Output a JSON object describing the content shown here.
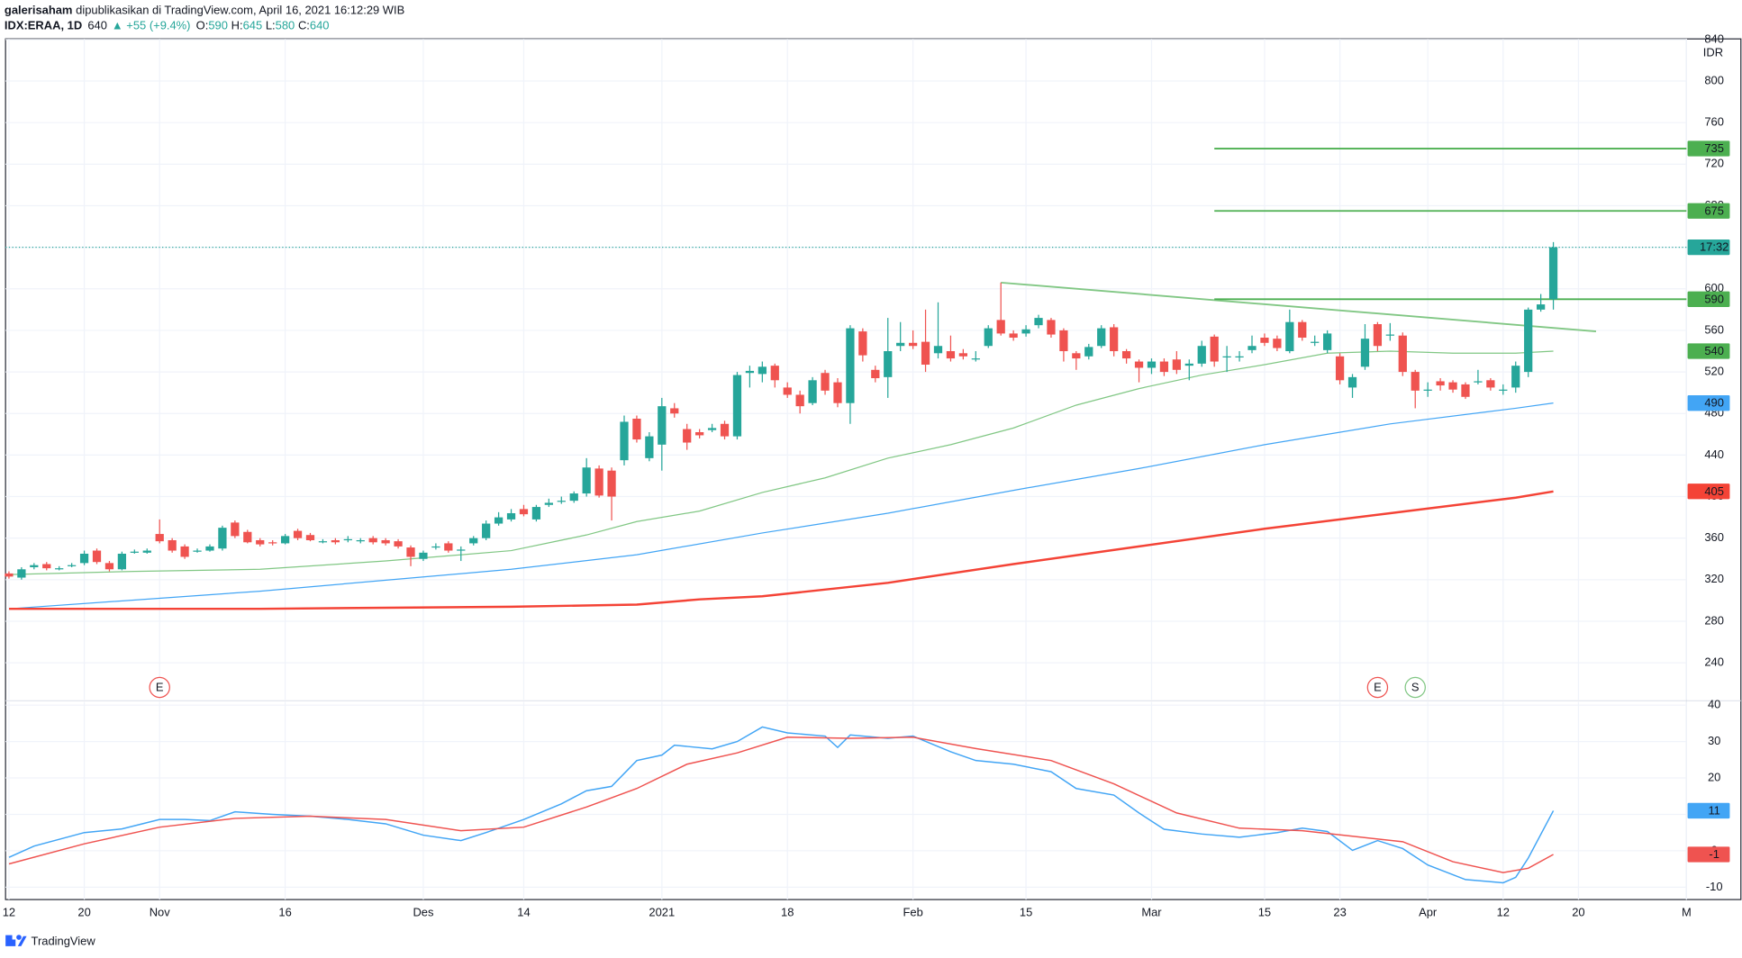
{
  "header": {
    "author": "galerisaham",
    "published": "dipublikasikan di TradingView.com, April 16, 2021 16:12:29 WIB",
    "symbol": "IDX:ERAA, 1D",
    "last": "640",
    "change": "▲ +55 (+9.4%)",
    "ohlc": [
      {
        "k": "O:",
        "v": "590"
      },
      {
        "k": "H:",
        "v": "645"
      },
      {
        "k": "L:",
        "v": "580"
      },
      {
        "k": "C:",
        "v": "640"
      }
    ],
    "currency": "IDR",
    "countdown": "17:32",
    "brand": "TradingView"
  },
  "chart_data": [
    {
      "type": "candlestick",
      "up_color": "#26a69a",
      "down_color": "#ef5350",
      "open": [
        326,
        322,
        332,
        335,
        330,
        333,
        336,
        348,
        336,
        330,
        346,
        346,
        364,
        358,
        352,
        347,
        348,
        350,
        375,
        366,
        358,
        356,
        355,
        367,
        363,
        356,
        358,
        358,
        357,
        360,
        358,
        357,
        351,
        340,
        351,
        355,
        348,
        355,
        360,
        374,
        378,
        388,
        378,
        392,
        395,
        396,
        403,
        427,
        425,
        435,
        475,
        437,
        450,
        485,
        465,
        462,
        464,
        470,
        458,
        519,
        518,
        526,
        505,
        498,
        490,
        519,
        510,
        490,
        559,
        522,
        515,
        545,
        548,
        549,
        538,
        540,
        538,
        532,
        545,
        570,
        557,
        557,
        565,
        570,
        560,
        538,
        535,
        545,
        563,
        540,
        530,
        524,
        530,
        532,
        526,
        528,
        554,
        534,
        534,
        541,
        553,
        552,
        540,
        568,
        548,
        541,
        535,
        505,
        525,
        566,
        555,
        555,
        520,
        502,
        511,
        510,
        508,
        510,
        512,
        502,
        505,
        520,
        580,
        590
      ],
      "high": [
        328,
        332,
        336,
        337,
        333,
        336,
        348,
        350,
        338,
        347,
        349,
        350,
        378,
        360,
        354,
        350,
        354,
        372,
        377,
        368,
        360,
        358,
        364,
        369,
        365,
        359,
        360,
        362,
        360,
        362,
        360,
        359,
        353,
        348,
        355,
        357,
        352,
        362,
        377,
        385,
        388,
        392,
        392,
        398,
        400,
        405,
        437,
        430,
        428,
        478,
        478,
        462,
        495,
        490,
        470,
        465,
        470,
        473,
        520,
        526,
        530,
        528,
        510,
        502,
        515,
        522,
        514,
        565,
        562,
        526,
        572,
        568,
        560,
        580,
        587,
        555,
        542,
        540,
        565,
        606,
        560,
        565,
        575,
        572,
        562,
        540,
        547,
        565,
        566,
        542,
        532,
        533,
        533,
        540,
        532,
        550,
        556,
        545,
        540,
        555,
        557,
        555,
        580,
        570,
        555,
        560,
        538,
        518,
        566,
        568,
        567,
        558,
        522,
        510,
        514,
        512,
        510,
        522,
        514,
        508,
        530,
        582,
        595,
        645
      ],
      "low": [
        321,
        320,
        330,
        329,
        329,
        332,
        334,
        335,
        328,
        329,
        345,
        345,
        355,
        346,
        340,
        346,
        347,
        348,
        360,
        355,
        352,
        353,
        354,
        358,
        357,
        355,
        354,
        356,
        355,
        354,
        353,
        350,
        333,
        338,
        349,
        346,
        338,
        353,
        358,
        372,
        376,
        381,
        376,
        390,
        393,
        394,
        400,
        399,
        377,
        430,
        452,
        434,
        425,
        476,
        445,
        456,
        462,
        455,
        455,
        505,
        510,
        505,
        495,
        480,
        488,
        498,
        486,
        470,
        530,
        510,
        495,
        540,
        542,
        520,
        533,
        530,
        532,
        530,
        543,
        555,
        550,
        554,
        562,
        553,
        530,
        522,
        532,
        543,
        535,
        528,
        510,
        518,
        516,
        518,
        512,
        525,
        525,
        520,
        530,
        538,
        545,
        540,
        538,
        550,
        545,
        538,
        508,
        495,
        522,
        540,
        550,
        516,
        485,
        496,
        502,
        500,
        494,
        508,
        502,
        498,
        500,
        515,
        578,
        580
      ],
      "close": [
        323,
        330,
        334,
        331,
        331,
        334,
        345,
        337,
        330,
        345,
        347,
        348,
        357,
        348,
        342,
        348,
        352,
        370,
        362,
        356,
        354,
        355,
        362,
        360,
        358,
        357,
        356,
        359,
        358,
        356,
        355,
        352,
        342,
        346,
        352,
        348,
        349,
        360,
        374,
        380,
        384,
        383,
        390,
        394,
        396,
        403,
        428,
        401,
        400,
        472,
        455,
        458,
        487,
        480,
        452,
        459,
        466,
        458,
        517,
        521,
        525,
        512,
        498,
        487,
        512,
        502,
        490,
        562,
        536,
        514,
        540,
        548,
        545,
        527,
        545,
        533,
        535,
        533,
        562,
        557,
        553,
        561,
        572,
        556,
        540,
        533,
        544,
        562,
        540,
        533,
        524,
        530,
        520,
        522,
        528,
        545,
        530,
        535,
        535,
        545,
        548,
        543,
        568,
        553,
        549,
        557,
        512,
        515,
        552,
        545,
        556,
        520,
        502,
        503,
        507,
        503,
        496,
        511,
        505,
        503,
        526,
        580,
        585,
        640
      ],
      "overlays": [
        {
          "color": "#81c784",
          "width": 1,
          "x": [
            0,
            10,
            20,
            30,
            40,
            46,
            50,
            55,
            60,
            65,
            70,
            75,
            80,
            85,
            90,
            95,
            100,
            105,
            110,
            115,
            120,
            123
          ],
          "values": [
            325,
            328,
            330,
            338,
            348,
            363,
            376,
            386,
            404,
            418,
            437,
            450,
            466,
            488,
            504,
            517,
            527,
            538,
            540,
            538,
            538,
            540
          ]
        },
        {
          "color": "#42a5f5",
          "width": 1,
          "x": [
            0,
            20,
            40,
            50,
            60,
            70,
            80,
            90,
            100,
            110,
            120,
            123
          ],
          "values": [
            292,
            309,
            330,
            344,
            365,
            384,
            406,
            427,
            450,
            470,
            485,
            490
          ]
        },
        {
          "color": "#f44336",
          "width": 2,
          "x": [
            0,
            20,
            40,
            50,
            55,
            60,
            70,
            80,
            90,
            100,
            110,
            120,
            123
          ],
          "values": [
            292,
            292,
            294,
            296,
            301,
            304,
            317,
            335,
            352,
            369,
            384,
            399,
            405
          ]
        }
      ],
      "levels": [
        {
          "value": 735,
          "from": 96
        },
        {
          "value": 675,
          "from": 96
        },
        {
          "value": 590,
          "from": 96
        }
      ],
      "level_color": "#4caf50",
      "trendline": {
        "color": "#81c784",
        "x": [
          79,
          126.4
        ],
        "y": [
          606,
          559
        ]
      },
      "events": [
        {
          "x": 12,
          "label": "E",
          "color": "#ef5350"
        },
        {
          "x": 109,
          "label": "E",
          "color": "#ef5350"
        },
        {
          "x": 112,
          "label": "S",
          "color": "#81c784"
        }
      ],
      "xlim": [
        -0.27,
        133.6
      ],
      "xticks": [
        {
          "value": 0,
          "label": "12"
        },
        {
          "value": 6,
          "label": "20"
        },
        {
          "value": 12,
          "label": "Nov"
        },
        {
          "value": 22,
          "label": "16"
        },
        {
          "value": 33,
          "label": "Des"
        },
        {
          "value": 41,
          "label": "14"
        },
        {
          "value": 52,
          "label": "2021"
        },
        {
          "value": 62,
          "label": "18"
        },
        {
          "value": 72,
          "label": "Feb"
        },
        {
          "value": 81,
          "label": "15"
        },
        {
          "value": 91,
          "label": "Mar"
        },
        {
          "value": 100,
          "label": "15"
        },
        {
          "value": 106,
          "label": "23"
        },
        {
          "value": 113,
          "label": "Apr"
        },
        {
          "value": 119,
          "label": "12"
        },
        {
          "value": 125,
          "label": "20"
        },
        {
          "value": 133.6,
          "label": "M"
        }
      ],
      "ylim": [
        204.5,
        840.6
      ],
      "yticks": [
        240,
        280,
        320,
        360,
        400,
        440,
        480,
        520,
        560,
        600,
        640,
        680,
        720,
        760,
        800,
        840
      ],
      "grid": true
    },
    {
      "type": "line",
      "series": [
        {
          "color": "#42a5f5",
          "x": [
            0,
            2,
            6,
            9,
            12,
            14,
            16,
            18,
            21,
            24,
            27,
            30,
            33,
            36,
            38,
            41,
            44,
            46,
            48,
            50,
            52,
            53,
            56,
            58,
            60,
            62,
            65,
            66,
            67,
            70,
            72,
            75,
            77,
            80,
            83,
            85,
            88,
            90,
            92,
            95,
            98,
            101,
            103,
            105,
            107,
            109,
            111,
            113,
            116,
            118,
            119,
            120,
            121,
            123
          ],
          "values": [
            -1.8,
            1.3,
            5,
            6,
            8.6,
            8.6,
            8.3,
            10.7,
            10,
            9.5,
            8.6,
            7.4,
            4.3,
            2.8,
            5,
            8.6,
            12.9,
            16.5,
            17.7,
            24.8,
            26.3,
            29,
            28,
            30,
            34,
            32.4,
            31.5,
            28.4,
            31.8,
            30.9,
            31.5,
            27.2,
            24.8,
            23.8,
            21.7,
            17.1,
            15.3,
            10.4,
            5.9,
            4.6,
            3.7,
            5,
            6.2,
            5.3,
            0.1,
            2.8,
            0.6,
            -3.9,
            -7.9,
            -8.5,
            -8.8,
            -7.3,
            -2,
            11
          ]
        },
        {
          "color": "#ef5350",
          "x": [
            0,
            6,
            12,
            18,
            24,
            30,
            36,
            41,
            46,
            50,
            54,
            58,
            62,
            67,
            72,
            77,
            83,
            88,
            93,
            98,
            103,
            107,
            111,
            115,
            119,
            121,
            123
          ],
          "values": [
            -3.6,
            1.9,
            6.5,
            8.9,
            9.5,
            8.6,
            5.5,
            6.5,
            12,
            17.1,
            23.8,
            26.9,
            31.2,
            30.9,
            31.2,
            28.1,
            24.8,
            18.4,
            10.4,
            6.2,
            5.5,
            4,
            2.5,
            -3,
            -6,
            -4.8,
            -1
          ]
        }
      ],
      "ylim": [
        -13.4,
        40.9
      ],
      "yticks": [
        -10,
        0,
        10,
        20,
        30,
        40
      ]
    }
  ]
}
